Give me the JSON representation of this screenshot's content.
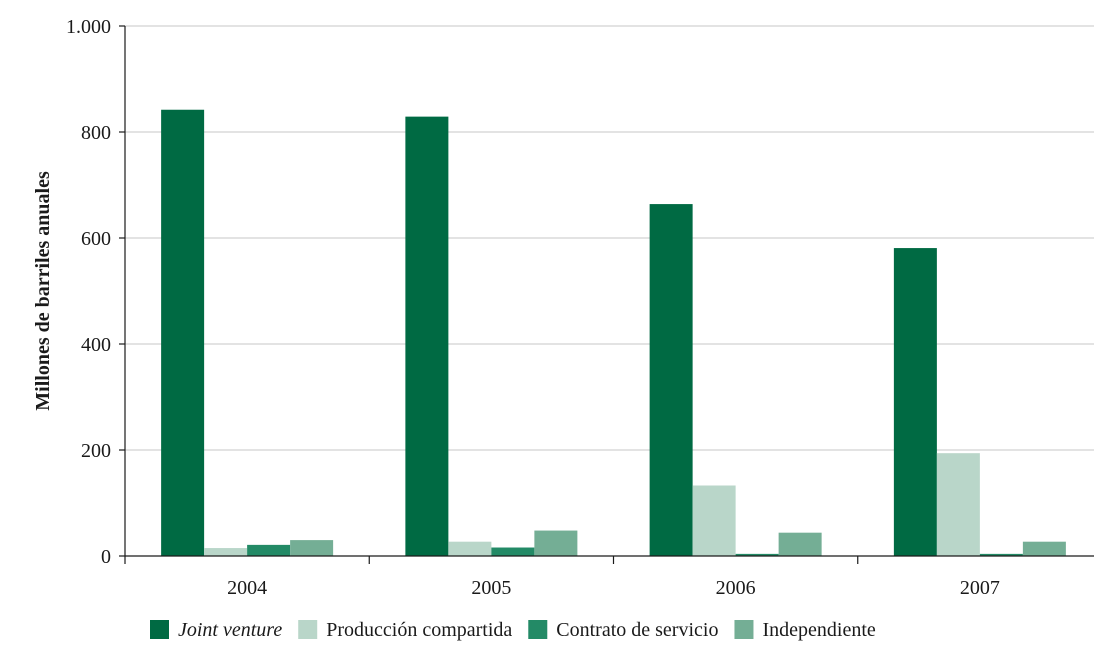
{
  "chart_data": {
    "type": "bar",
    "categories": [
      "2004",
      "2005",
      "2006",
      "2007"
    ],
    "series": [
      {
        "name": "Joint venture",
        "values": [
          842,
          829,
          664,
          581
        ],
        "color": "#006a43",
        "italic": true
      },
      {
        "name": "Producción compartida",
        "values": [
          15,
          27,
          133,
          194
        ],
        "color": "#b9d6c9",
        "italic": false
      },
      {
        "name": "Contrato de servicio",
        "values": [
          21,
          16,
          4,
          4
        ],
        "color": "#238a66",
        "italic": false
      },
      {
        "name": "Independiente",
        "values": [
          30,
          48,
          44,
          27
        ],
        "color": "#74ae95",
        "italic": false
      }
    ],
    "title": "",
    "xlabel": "",
    "ylabel": "Millones de barriles anuales",
    "ylim": [
      0,
      1000
    ],
    "yticks": [
      0,
      200,
      400,
      600,
      800,
      1000
    ],
    "ytick_labels": [
      "0",
      "200",
      "400",
      "600",
      "800",
      "1.000"
    ],
    "grid": true,
    "legend_position": "bottom"
  }
}
